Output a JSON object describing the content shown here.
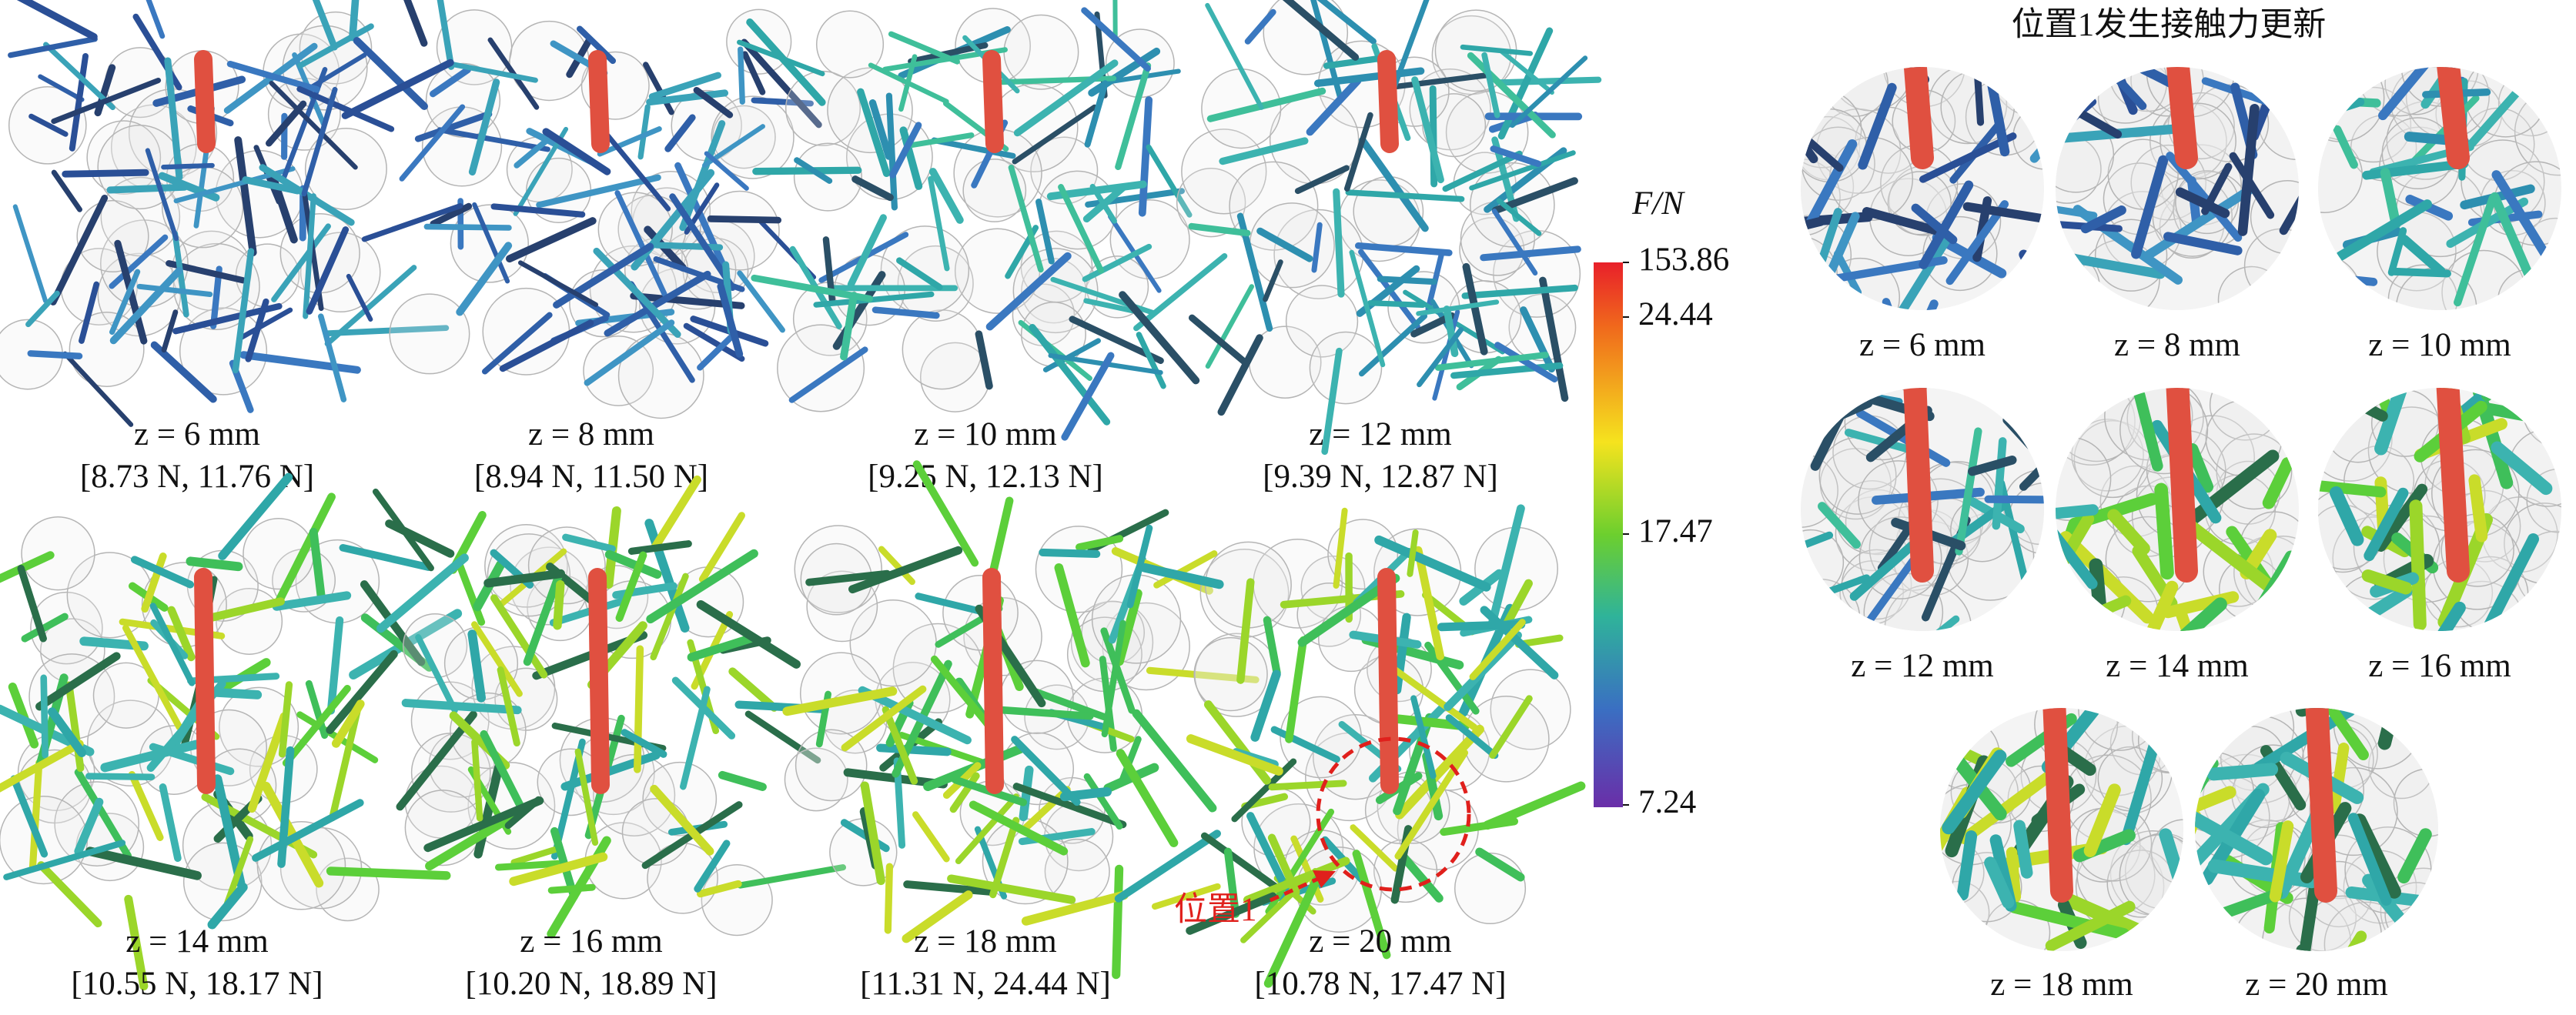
{
  "panels": [
    {
      "z_label": "z = 6 mm",
      "range": "[8.73 N, 11.76 N]"
    },
    {
      "z_label": "z = 8 mm",
      "range": "[8.94 N, 11.50 N]"
    },
    {
      "z_label": "z = 10 mm",
      "range": "[9.25 N, 12.13 N]"
    },
    {
      "z_label": "z = 12 mm",
      "range": "[9.39 N, 12.87 N]"
    },
    {
      "z_label": "z = 14 mm",
      "range": "[10.55 N, 18.17 N]"
    },
    {
      "z_label": "z = 16 mm",
      "range": "[10.20 N, 18.89 N]"
    },
    {
      "z_label": "z = 18 mm",
      "range": "[11.31 N, 24.44 N]"
    },
    {
      "z_label": "z = 20 mm",
      "range": "[10.78 N, 17.47 N]"
    }
  ],
  "annotation": "位置1",
  "colorbar": {
    "label": "F/N",
    "ticks": [
      153.86,
      24.44,
      17.47,
      7.24
    ]
  },
  "zoom": {
    "title": "位置1发生接触力更新",
    "labels": [
      "z = 6 mm",
      "z = 8 mm",
      "z = 10 mm",
      "z = 12 mm",
      "z = 14 mm",
      "z = 16 mm",
      "z = 18 mm",
      "z = 20 mm"
    ]
  }
}
